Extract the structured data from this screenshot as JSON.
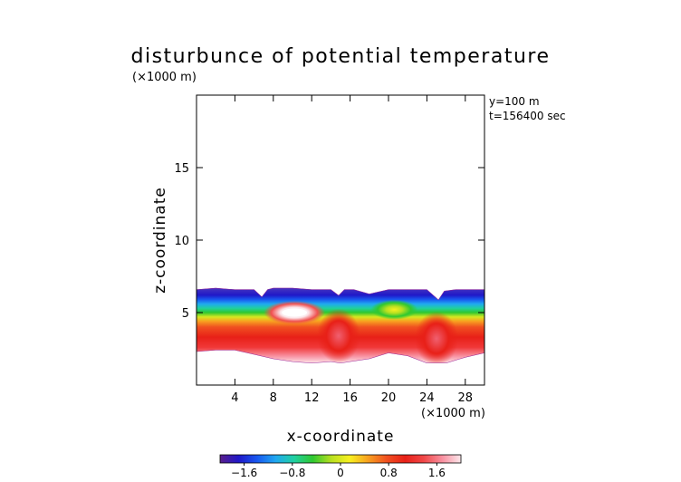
{
  "chart_data": {
    "type": "heatmap",
    "title": "disturbunce of potential temperature",
    "axis_unit_label": "(×1000 m)",
    "xlabel": "x-coordinate",
    "ylabel": "z-coordinate",
    "annotation_lines": [
      "y=100 m",
      "t=156400 sec"
    ],
    "xlim": [
      0,
      30
    ],
    "ylim": [
      0,
      20
    ],
    "xticks": [
      4,
      8,
      12,
      16,
      20,
      24,
      28
    ],
    "xtick_labels": [
      "4",
      "8",
      "12",
      "16",
      "20",
      "24",
      "28"
    ],
    "yticks": [
      5,
      10,
      15
    ],
    "ytick_labels": [
      "5",
      "10",
      "15"
    ],
    "colorbar": {
      "range": [
        -2.0,
        2.0
      ],
      "ticks": [
        -1.6,
        -0.8,
        0,
        0.8,
        1.6
      ],
      "tick_labels": [
        "−1.6",
        "−0.8",
        "0",
        "0.8",
        "1.6"
      ],
      "colors": [
        "#5a1e8c",
        "#2018c8",
        "#1858f0",
        "#20a8f0",
        "#20d0a0",
        "#30c830",
        "#b8e020",
        "#f8f020",
        "#f8a020",
        "#f05020",
        "#e82018",
        "#f04848",
        "#f890a0",
        "#fce8ec"
      ]
    },
    "domain_top": [
      [
        0,
        6.6
      ],
      [
        2,
        6.7
      ],
      [
        4,
        6.6
      ],
      [
        6,
        6.6
      ],
      [
        6.8,
        6.1
      ],
      [
        7.4,
        6.6
      ],
      [
        8,
        6.7
      ],
      [
        10,
        6.7
      ],
      [
        12,
        6.6
      ],
      [
        14,
        6.6
      ],
      [
        14.8,
        6.2
      ],
      [
        15.4,
        6.6
      ],
      [
        16.4,
        6.6
      ],
      [
        18,
        6.3
      ],
      [
        20,
        6.6
      ],
      [
        22,
        6.6
      ],
      [
        24,
        6.6
      ],
      [
        25.2,
        5.9
      ],
      [
        25.8,
        6.5
      ],
      [
        27,
        6.6
      ],
      [
        28.5,
        6.6
      ],
      [
        30,
        6.6
      ]
    ],
    "domain_bottom": [
      [
        0,
        2.3
      ],
      [
        2,
        2.4
      ],
      [
        4,
        2.4
      ],
      [
        6,
        2.1
      ],
      [
        8,
        1.8
      ],
      [
        10,
        1.6
      ],
      [
        12,
        1.5
      ],
      [
        14,
        1.6
      ],
      [
        15,
        1.5
      ],
      [
        16,
        1.6
      ],
      [
        18,
        1.8
      ],
      [
        20,
        2.2
      ],
      [
        22,
        2.0
      ],
      [
        24,
        1.5
      ],
      [
        26,
        1.5
      ],
      [
        28,
        1.9
      ],
      [
        30,
        2.2
      ]
    ],
    "features": [
      {
        "type": "warm-core",
        "x": 10.2,
        "z": 5.0,
        "value": 2.0
      },
      {
        "type": "warm-core",
        "x": 20.6,
        "z": 5.2,
        "value": 0.8
      },
      {
        "type": "warm-plume",
        "x": 14.8,
        "z": 3.4,
        "value": 1.9
      },
      {
        "type": "warm-plume",
        "x": 25.0,
        "z": 3.2,
        "value": 1.9
      }
    ]
  }
}
